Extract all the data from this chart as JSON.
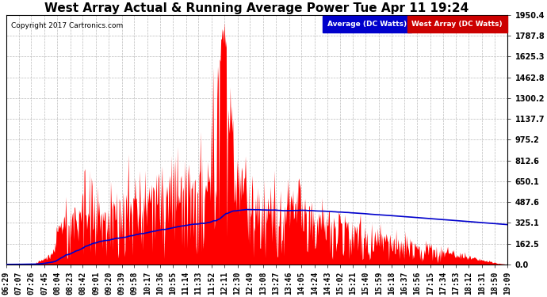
{
  "title": "West Array Actual & Running Average Power Tue Apr 11 19:24",
  "copyright": "Copyright 2017 Cartronics.com",
  "legend_avg": "Average (DC Watts)",
  "legend_west": "West Array (DC Watts)",
  "yticks": [
    0.0,
    162.5,
    325.1,
    487.6,
    650.1,
    812.6,
    975.2,
    1137.7,
    1300.2,
    1462.8,
    1625.3,
    1787.8,
    1950.4
  ],
  "ymax": 1950.4,
  "bg_color": "#ffffff",
  "plot_bg_color": "#ffffff",
  "grid_color": "#bbbbbb",
  "red_color": "#ff0000",
  "blue_color": "#0000cc",
  "title_fontsize": 11,
  "tick_fontsize": 7,
  "legend_bg_blue": "#0000cc",
  "legend_bg_red": "#cc0000",
  "xtick_labels": [
    "06:29",
    "07:07",
    "07:26",
    "07:45",
    "08:04",
    "08:23",
    "08:42",
    "09:01",
    "09:20",
    "09:39",
    "09:58",
    "10:17",
    "10:36",
    "10:55",
    "11:14",
    "11:33",
    "11:52",
    "12:11",
    "12:30",
    "12:49",
    "13:08",
    "13:27",
    "13:46",
    "14:05",
    "14:24",
    "14:43",
    "15:02",
    "15:21",
    "15:40",
    "15:59",
    "16:18",
    "16:37",
    "16:56",
    "17:15",
    "17:34",
    "17:53",
    "18:12",
    "18:31",
    "18:50",
    "19:09"
  ]
}
